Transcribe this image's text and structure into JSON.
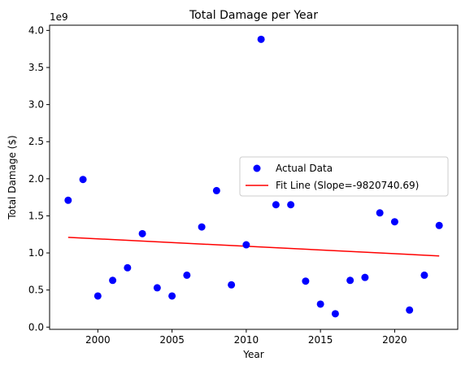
{
  "chart_data": {
    "type": "scatter",
    "title": "Total Damage per Year",
    "xlabel": "Year",
    "ylabel": "Total Damage ($)",
    "y_multiplier_label": "1e9",
    "xlim": [
      1996.75,
      2024.25
    ],
    "ylim": [
      -0.03,
      4.07
    ],
    "xticks": [
      2000,
      2005,
      2010,
      2015,
      2020
    ],
    "xtick_labels": [
      "2000",
      "2005",
      "2010",
      "2015",
      "2020"
    ],
    "yticks": [
      0.0,
      0.5,
      1.0,
      1.5,
      2.0,
      2.5,
      3.0,
      3.5,
      4.0
    ],
    "ytick_labels": [
      "0.0",
      "0.5",
      "1.0",
      "1.5",
      "2.0",
      "2.5",
      "3.0",
      "3.5",
      "4.0"
    ],
    "grid": false,
    "legend_position": "center-right",
    "series": [
      {
        "name": "Actual Data",
        "kind": "scatter",
        "color": "#0000ff",
        "x": [
          1998,
          1999,
          2000,
          2001,
          2002,
          2003,
          2004,
          2005,
          2006,
          2007,
          2008,
          2009,
          2010,
          2011,
          2012,
          2013,
          2014,
          2015,
          2016,
          2017,
          2018,
          2019,
          2020,
          2021,
          2022,
          2023
        ],
        "y": [
          1.71,
          1.99,
          0.42,
          0.63,
          0.8,
          1.26,
          0.53,
          0.42,
          0.7,
          1.35,
          1.84,
          0.57,
          1.11,
          3.88,
          1.65,
          1.65,
          0.62,
          0.31,
          0.18,
          0.63,
          0.67,
          1.54,
          1.42,
          0.23,
          0.7,
          1.37
        ]
      },
      {
        "name": "Fit Line (Slope=-9820740.69)",
        "kind": "line",
        "color": "#ff0000",
        "x": [
          1998,
          2023
        ],
        "y": [
          1.21,
          0.96
        ]
      }
    ]
  }
}
